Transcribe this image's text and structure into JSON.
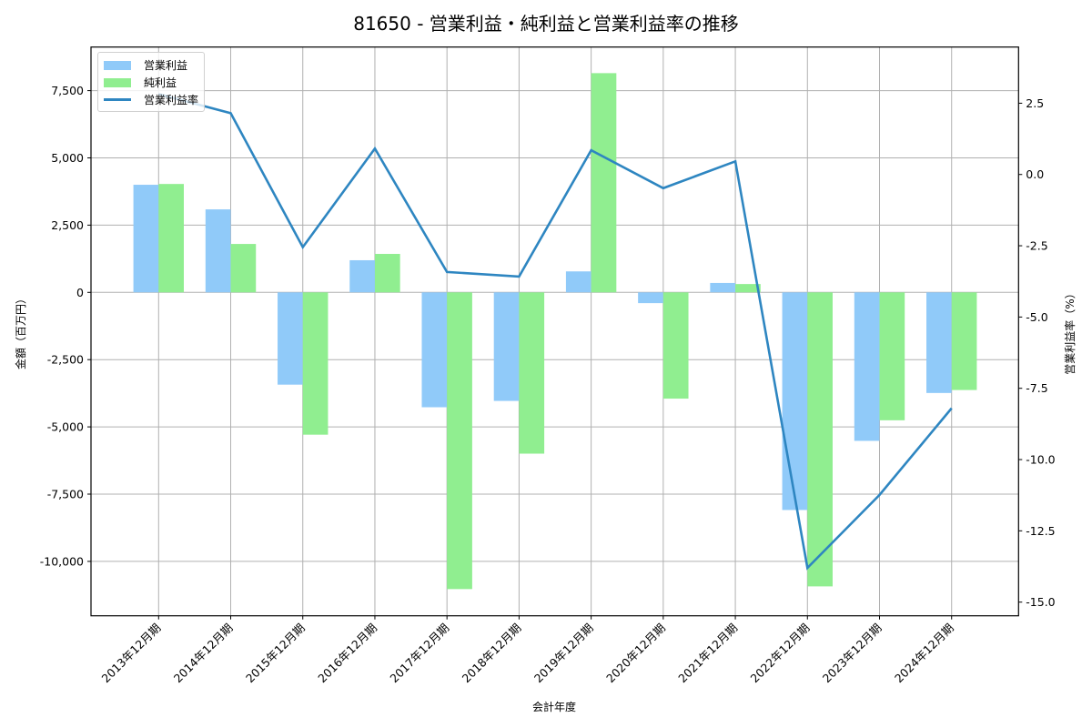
{
  "title": "81650 - 営業利益・純利益と営業利益率の推移",
  "legend": {
    "items": [
      {
        "label": "営業利益",
        "type": "bar",
        "color": "#90caf9"
      },
      {
        "label": "純利益",
        "type": "bar",
        "color": "#90ee90"
      },
      {
        "label": "営業利益率",
        "type": "line",
        "color": "#2e86c1"
      }
    ]
  },
  "chart_data": {
    "type": "bar",
    "title": "81650 - 営業利益・純利益と営業利益率の推移",
    "xlabel": "会計年度",
    "ylabel": "金額（百万円）",
    "y2label": "営業利益率（%）",
    "categories": [
      "2013年12月期",
      "2014年12月期",
      "2015年12月期",
      "2016年12月期",
      "2017年12月期",
      "2018年12月期",
      "2019年12月期",
      "2020年12月期",
      "2021年12月期",
      "2022年12月期",
      "2023年12月期",
      "2024年12月期"
    ],
    "series": [
      {
        "name": "営業利益",
        "type": "bar",
        "axis": "left",
        "color": "#90caf9",
        "values": [
          4000,
          3085,
          -3430,
          1195,
          -4270,
          -4035,
          780,
          -400,
          350,
          -8090,
          -5520,
          -3740
        ]
      },
      {
        "name": "純利益",
        "type": "bar",
        "axis": "left",
        "color": "#90ee90",
        "values": [
          4030,
          1800,
          -5290,
          1430,
          -11030,
          -5995,
          8150,
          -3950,
          310,
          -10930,
          -4755,
          -3630
        ]
      },
      {
        "name": "営業利益率",
        "type": "line",
        "axis": "right",
        "color": "#2e86c1",
        "values": [
          2.82,
          2.15,
          -2.55,
          0.91,
          -3.42,
          -3.58,
          0.85,
          -0.48,
          0.46,
          -13.8,
          -11.24,
          -8.2
        ]
      }
    ],
    "ylim": [
      -12023,
      9120
    ],
    "y2lim": [
      -15.48,
      4.47
    ],
    "yticks": [
      -10000,
      -7500,
      -5000,
      -2500,
      0,
      2500,
      5000,
      7500
    ],
    "ytick_labels": [
      "-10,000",
      "-7,500",
      "-5,000",
      "-2,500",
      "0",
      "2,500",
      "5,000",
      "7,500"
    ],
    "y2ticks": [
      -15,
      -12.5,
      -10,
      -7.5,
      -5,
      -2.5,
      0,
      2.5
    ],
    "y2tick_labels": [
      "-15.0",
      "-12.5",
      "-10.0",
      "-7.5",
      "-5.0",
      "-2.5",
      "0.0",
      "2.5"
    ],
    "grid": true,
    "legend_position": "upper left"
  }
}
